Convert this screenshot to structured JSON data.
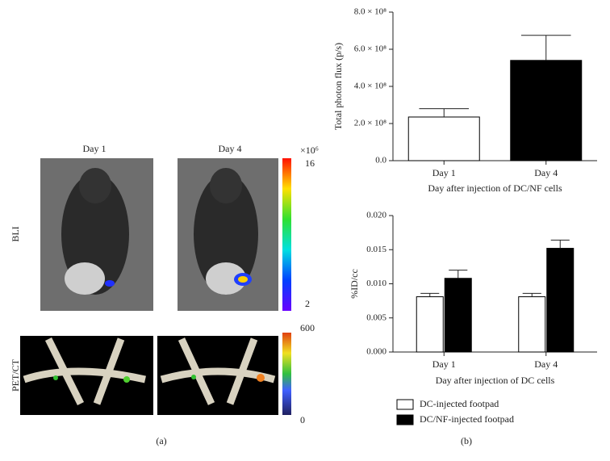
{
  "chart_data": [
    {
      "type": "bar",
      "categories": [
        "Day 1",
        "Day 4"
      ],
      "values": [
        235000000,
        540000000
      ],
      "errors": [
        45000000,
        135000000
      ],
      "colors": [
        "#ffffff",
        "#000000"
      ],
      "ylabel": "Total photon flux (p/s)",
      "xlabel": "Day after injection of DC/NF cells",
      "ylim": [
        0,
        800000000
      ],
      "yticks": [
        {
          "value": 0,
          "label": "0.0"
        },
        {
          "value": 200000000,
          "label": "2.0 × 10⁸"
        },
        {
          "value": 400000000,
          "label": "4.0 × 10⁸"
        },
        {
          "value": 600000000,
          "label": "6.0 × 10⁸"
        },
        {
          "value": 800000000,
          "label": "8.0 × 10⁸"
        }
      ]
    },
    {
      "type": "bar",
      "categories": [
        "Day 1",
        "Day 4"
      ],
      "series": [
        {
          "name": "DC-injected footpad",
          "color": "#ffffff",
          "values": [
            0.0081,
            0.0081
          ],
          "errors": [
            0.0005,
            0.0005
          ]
        },
        {
          "name": "DC/NF-injected footpad",
          "color": "#000000",
          "values": [
            0.0108,
            0.0152
          ],
          "errors": [
            0.0012,
            0.0012
          ]
        }
      ],
      "ylabel": "%ID/cc",
      "xlabel": "Day after injection of DC cells",
      "ylim": [
        0,
        0.02
      ],
      "yticks": [
        {
          "value": 0,
          "label": "0.000"
        },
        {
          "value": 0.005,
          "label": "0.005"
        },
        {
          "value": 0.01,
          "label": "0.010"
        },
        {
          "value": 0.015,
          "label": "0.015"
        },
        {
          "value": 0.02,
          "label": "0.020"
        }
      ]
    }
  ],
  "figure": {
    "panel_a": {
      "columns": [
        "Day 1",
        "Day 4"
      ],
      "rows": [
        "BLI",
        "PET/CT"
      ],
      "bli_scale": {
        "unit": "×10⁶",
        "max": "16",
        "min": "2"
      },
      "pet_scale": {
        "max": "600",
        "min": "0"
      },
      "label": "(a)"
    },
    "panel_b_label": "(b)"
  }
}
